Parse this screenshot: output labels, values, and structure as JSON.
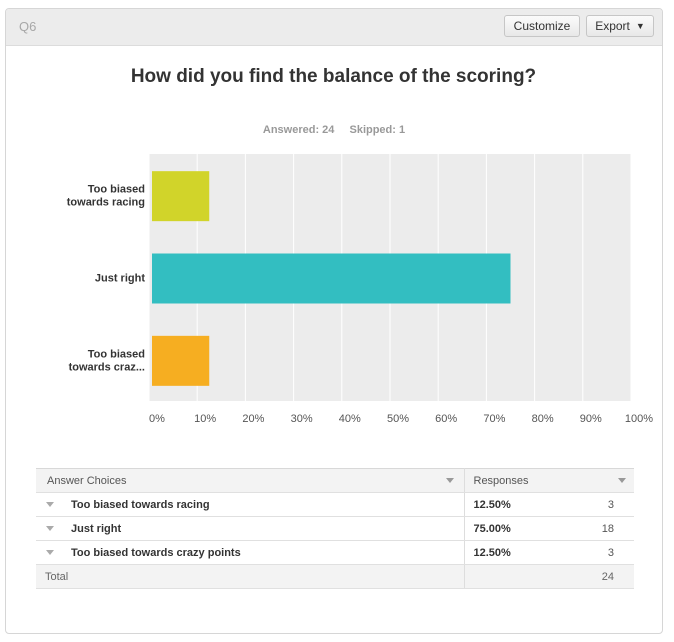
{
  "header": {
    "question_number": "Q6",
    "customize_label": "Customize",
    "export_label": "Export"
  },
  "question": {
    "title": "How did you find the balance of the scoring?",
    "answered": "Answered: 24",
    "skipped": "Skipped: 1"
  },
  "colors": {
    "bar_1": "#d1d42a",
    "bar_2": "#33bec1",
    "bar_3": "#f6ae21",
    "plot_bg": "#ececec",
    "gridline": "#ffffff"
  },
  "chart_data": {
    "type": "bar",
    "orientation": "horizontal",
    "categories": [
      "Too biased towards racing",
      "Just right",
      "Too biased towards crazy points"
    ],
    "category_labels_lines": [
      [
        "Too biased",
        "towards racing"
      ],
      [
        "Just right"
      ],
      [
        "Too biased",
        "towards craz..."
      ]
    ],
    "values": [
      12.5,
      75.0,
      12.5
    ],
    "xlim": [
      0,
      100
    ],
    "x_ticks": [
      "0%",
      "10%",
      "20%",
      "30%",
      "40%",
      "50%",
      "60%",
      "70%",
      "80%",
      "90%",
      "100%"
    ],
    "grid": true
  },
  "table": {
    "headers": {
      "choices": "Answer Choices",
      "responses": "Responses"
    },
    "rows": [
      {
        "label": "Too biased towards racing",
        "percent": "12.50%",
        "count": "3"
      },
      {
        "label": "Just right",
        "percent": "75.00%",
        "count": "18"
      },
      {
        "label": "Too biased towards crazy points",
        "percent": "12.50%",
        "count": "3"
      }
    ],
    "total_label": "Total",
    "total_count": "24"
  }
}
